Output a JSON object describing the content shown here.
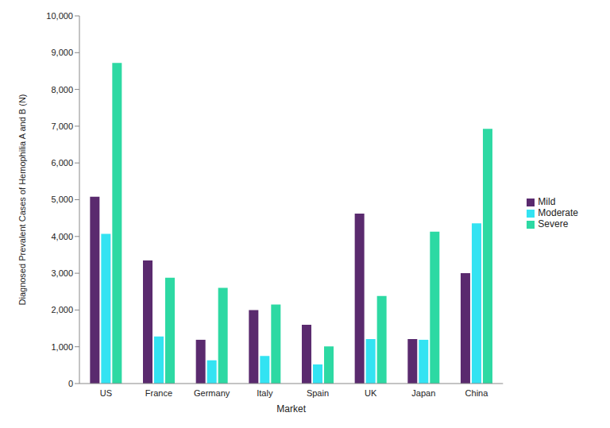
{
  "chart_data": {
    "type": "bar",
    "x_label": "Market",
    "y_label": "Diagnosed Prevalent Cases of Hemophilia A and B (N)",
    "categories": [
      "US",
      "France",
      "Germany",
      "Italy",
      "Spain",
      "UK",
      "Japan",
      "China"
    ],
    "series": [
      {
        "name": "Mild",
        "color": "#5a2a6e",
        "values": [
          5080,
          3350,
          1190,
          2000,
          1600,
          4620,
          1210,
          3000
        ]
      },
      {
        "name": "Moderate",
        "color": "#33e3f2",
        "values": [
          4070,
          1280,
          630,
          750,
          520,
          1210,
          1190,
          4360
        ]
      },
      {
        "name": "Severe",
        "color": "#2dd9a3",
        "values": [
          8720,
          2880,
          2600,
          2150,
          1010,
          2380,
          4130,
          6930
        ]
      }
    ],
    "ylim": [
      0,
      10000
    ],
    "yticks": [
      0,
      {
        "value": 1000,
        "label": "1,000"
      },
      {
        "value": 2000,
        "label": "2,000"
      },
      {
        "value": 3000,
        "label": "3,000"
      },
      {
        "value": 4000,
        "label": "4,000"
      },
      {
        "value": 5000,
        "label": "5,000"
      },
      {
        "value": 6000,
        "label": "6,000"
      },
      {
        "value": 7000,
        "label": "7,000"
      },
      {
        "value": 8000,
        "label": "8,000"
      },
      {
        "value": 9000,
        "label": "9,000"
      },
      {
        "value": 10000,
        "label": "10,000"
      }
    ],
    "grid": false,
    "legend": "right"
  }
}
